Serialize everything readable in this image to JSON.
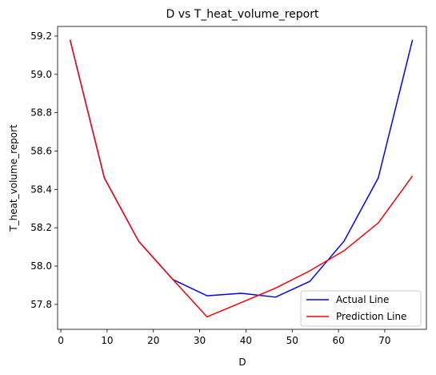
{
  "chart_data": {
    "type": "line",
    "title": "D vs T_heat_volume_report",
    "xlabel": "D",
    "ylabel": "T_heat_volume_report",
    "xlim": [
      -0.7,
      79
    ],
    "ylim": [
      57.67,
      59.25
    ],
    "xticks": [
      0,
      10,
      20,
      30,
      40,
      50,
      60,
      70
    ],
    "yticks": [
      57.8,
      58.0,
      58.2,
      58.4,
      58.6,
      58.8,
      59.0,
      59.2
    ],
    "ytick_labels": [
      "57.8",
      "58.0",
      "58.2",
      "58.4",
      "58.6",
      "58.8",
      "59.0",
      "59.2"
    ],
    "grid": false,
    "legend_position": "lower-right",
    "x": [
      2,
      9.4,
      16.8,
      24.2,
      31.6,
      39,
      46.4,
      53.8,
      61.2,
      68.6,
      76
    ],
    "series": [
      {
        "name": "Actual Line",
        "color": "#0000ff",
        "values": [
          59.18,
          58.46,
          58.13,
          57.93,
          57.845,
          57.858,
          57.838,
          57.92,
          58.13,
          58.46,
          59.18
        ]
      },
      {
        "name": "Prediction Line",
        "color": "#ff0000",
        "values": [
          59.18,
          58.46,
          58.13,
          57.93,
          57.735,
          57.81,
          57.885,
          57.975,
          58.08,
          58.225,
          58.47
        ]
      }
    ]
  }
}
